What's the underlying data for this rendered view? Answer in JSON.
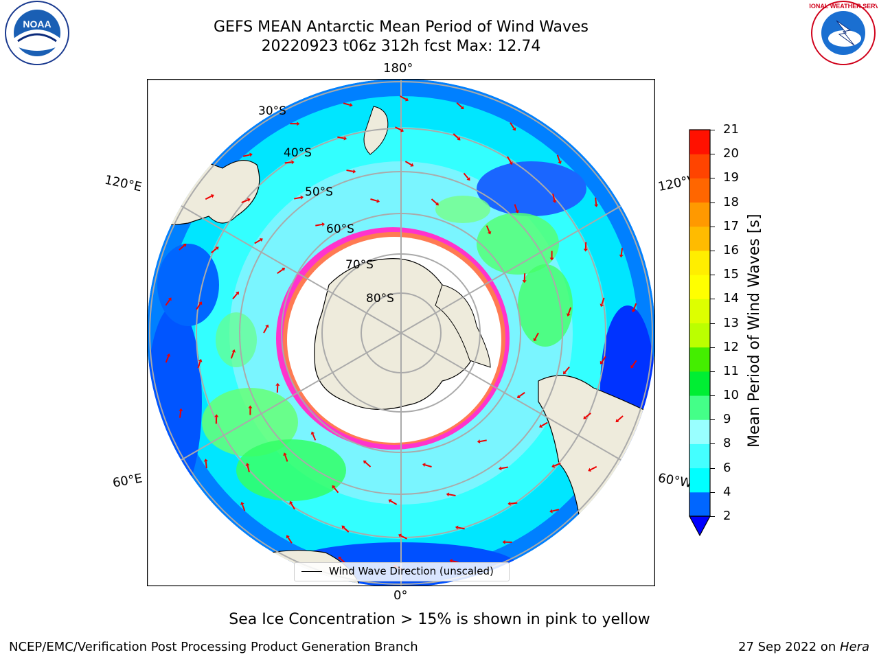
{
  "title": {
    "line1": "GEFS MEAN Antarctic Mean Period of Wind Waves",
    "line2": "20220923 t06z 312h fcst   Max: 12.74"
  },
  "logos": {
    "left": "NOAA",
    "right": "NATIONAL WEATHER SERVICE"
  },
  "map": {
    "lon_labels": {
      "top": "180°",
      "left_upper": "120°E",
      "right_upper": "120°W",
      "left_lower": "60°E",
      "right_lower": "60°W",
      "bottom": "0°"
    },
    "lat_labels": [
      "30°S",
      "40°S",
      "50°S",
      "60°S",
      "70°S",
      "80°S"
    ],
    "legend": "Wind Wave Direction (unscaled)",
    "colors": {
      "land": "#eeebdc",
      "ocean_blue": "#0055ff",
      "cyan": "#00ffff",
      "light_cyan": "#99ffff",
      "green": "#33ff66",
      "ice": "#ff33cc",
      "arrow": "#ee0000"
    }
  },
  "colorbar": {
    "label": "Mean Period of Wind Waves [s]",
    "ticks": [
      "21",
      "20",
      "19",
      "18",
      "17",
      "16",
      "15",
      "14",
      "13",
      "12",
      "11",
      "10",
      "9",
      "8",
      "6",
      "4",
      "2"
    ],
    "bins": [
      {
        "from": 2,
        "to": 4,
        "color": "#0066ff"
      },
      {
        "from": 4,
        "to": 6,
        "color": "#00ffff"
      },
      {
        "from": 6,
        "to": 8,
        "color": "#44ffff"
      },
      {
        "from": 8,
        "to": 9,
        "color": "#99ffff"
      },
      {
        "from": 9,
        "to": 10,
        "color": "#44ff88"
      },
      {
        "from": 10,
        "to": 11,
        "color": "#00ee33"
      },
      {
        "from": 11,
        "to": 12,
        "color": "#44ee00"
      },
      {
        "from": 12,
        "to": 13,
        "color": "#bbff00"
      },
      {
        "from": 13,
        "to": 14,
        "color": "#ddff00"
      },
      {
        "from": 14,
        "to": 15,
        "color": "#ffff00"
      },
      {
        "from": 15,
        "to": 16,
        "color": "#ffee00"
      },
      {
        "from": 16,
        "to": 17,
        "color": "#ffbb00"
      },
      {
        "from": 17,
        "to": 18,
        "color": "#ff9900"
      },
      {
        "from": 18,
        "to": 19,
        "color": "#ff6600"
      },
      {
        "from": 19,
        "to": 20,
        "color": "#ff4400"
      },
      {
        "from": 20,
        "to": 21,
        "color": "#ff1100"
      }
    ],
    "extend_color": "#0000ff"
  },
  "note": "Sea Ice Concentration > 15% is shown in pink to yellow",
  "footer": {
    "left": "NCEP/EMC/Verification Post Processing Product Generation Branch",
    "right_prefix": "27 Sep 2022 on ",
    "right_host": "Hera"
  }
}
